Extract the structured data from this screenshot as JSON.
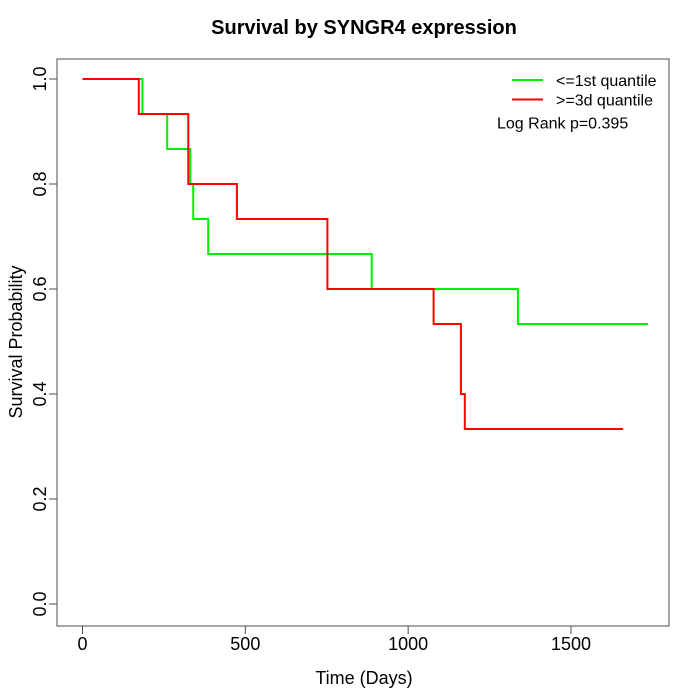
{
  "figure": {
    "title": "Survival by SYNGR4 expression",
    "x_axis": {
      "label": "Time (Days)",
      "ticks": [
        "0",
        "500",
        "1000",
        "1500"
      ]
    },
    "y_axis": {
      "label": "Survival Probability",
      "ticks": [
        "0.0",
        "0.2",
        "0.4",
        "0.6",
        "0.8",
        "1.0"
      ]
    },
    "legend": {
      "items": [
        {
          "label": "<=1st quantile",
          "color": "#00ee00"
        },
        {
          "label": ">=3d quantile",
          "color": "#ff0000"
        }
      ],
      "note": "Log Rank p=0.395"
    }
  },
  "chart_data": {
    "type": "line",
    "subtype": "kaplan-meier-step-curve",
    "title": "Survival by SYNGR4 expression",
    "xlabel": "Time (Days)",
    "ylabel": "Survival Probability",
    "x_ticks": [
      0,
      500,
      1000,
      1500
    ],
    "y_ticks": [
      0.0,
      0.2,
      0.4,
      0.6,
      0.8,
      1.0
    ],
    "xlim": [
      -77,
      1805
    ],
    "ylim": [
      -0.04,
      1.04
    ],
    "grid": false,
    "legend_position": "top-right",
    "annotation": "Log Rank p=0.395",
    "series": [
      {
        "name": "<=1st quantile",
        "color": "#00ee00",
        "steps_time_prob": [
          [
            0,
            1.0
          ],
          [
            184,
            0.9333
          ],
          [
            260,
            0.8667
          ],
          [
            331,
            0.8
          ],
          [
            340,
            0.7333
          ],
          [
            386,
            0.6667
          ],
          [
            888,
            0.6
          ],
          [
            1337,
            0.5333
          ]
        ],
        "end_time": 1736
      },
      {
        "name": ">=3d quantile",
        "color": "#ff0000",
        "steps_time_prob": [
          [
            0,
            1.0
          ],
          [
            173,
            0.9333
          ],
          [
            325,
            0.8
          ],
          [
            474,
            0.7333
          ],
          [
            752,
            0.6
          ],
          [
            1078,
            0.5333
          ],
          [
            1162,
            0.4
          ],
          [
            1174,
            0.3333
          ]
        ],
        "end_time": 1660
      }
    ]
  }
}
